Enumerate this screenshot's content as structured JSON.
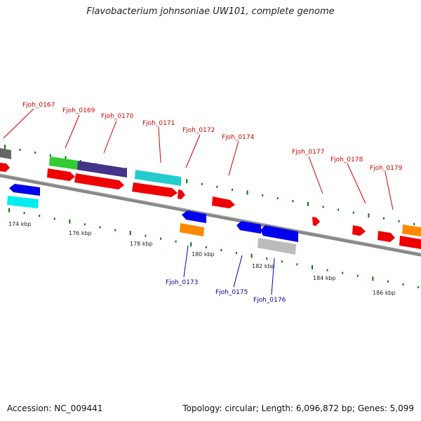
{
  "title": "Flavobacterium johnsoniae UW101, complete genome",
  "footer": {
    "accession": "Accession: NC_009441",
    "topology": "Topology: circular; Length: 6,096,872 bp; Genes: 5,099"
  },
  "colors": {
    "backbone": "#888888",
    "forward_label": "#cc0000",
    "reverse_label": "#0000aa",
    "tick": "#007700",
    "ruler_text": "#222222"
  },
  "ruler": {
    "major_labels": [
      "174 kbp",
      "176 kbp",
      "178 kbp",
      "180 kbp",
      "182 kbp",
      "184 kbp",
      "186 kbp"
    ]
  },
  "genes_forward": [
    {
      "name": "Fjoh_0167"
    },
    {
      "name": "Fjoh_0169"
    },
    {
      "name": "Fjoh_0170"
    },
    {
      "name": "Fjoh_0171"
    },
    {
      "name": "Fjoh_0172"
    },
    {
      "name": "Fjoh_0174"
    },
    {
      "name": "Fjoh_0177"
    },
    {
      "name": "Fjoh_0178"
    },
    {
      "name": "Fjoh_0179"
    }
  ],
  "genes_reverse": [
    {
      "name": "Fjoh_0173"
    },
    {
      "name": "Fjoh_0175"
    },
    {
      "name": "Fjoh_0176"
    }
  ],
  "feature_colors": {
    "cds_forward": "#ee0000",
    "cds_reverse": "#0000ee",
    "green": "#33cc33",
    "purple": "#443388",
    "cyan": "#22cccc",
    "bright_cyan": "#00eeee",
    "orange": "#ff8800",
    "gray": "#bbbbbb",
    "dark_gray": "#666666"
  }
}
